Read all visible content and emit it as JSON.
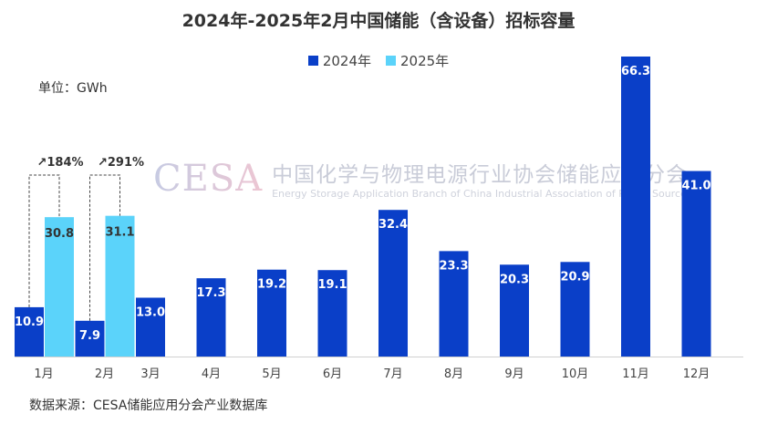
{
  "chart_data": {
    "type": "bar",
    "title": "2024年-2025年2月中国储能（含设备）招标容量",
    "unit_label": "单位：GWh",
    "source": "数据来源：CESA储能应用分会产业数据库",
    "categories": [
      "1月",
      "2月",
      "3月",
      "4月",
      "5月",
      "6月",
      "7月",
      "8月",
      "9月",
      "10月",
      "11月",
      "12月"
    ],
    "series": [
      {
        "name": "2024年",
        "color": "#0a3fc8",
        "values": [
          10.9,
          7.9,
          13.0,
          17.3,
          19.2,
          19.1,
          32.4,
          23.3,
          20.3,
          20.9,
          66.3,
          41.0
        ]
      },
      {
        "name": "2025年",
        "color": "#5bd3fa",
        "values": [
          30.8,
          31.1,
          null,
          null,
          null,
          null,
          null,
          null,
          null,
          null,
          null,
          null
        ]
      }
    ],
    "annotations": [
      {
        "category": "1月",
        "text": "↗184%"
      },
      {
        "category": "2月",
        "text": "↗291%"
      }
    ],
    "ylim": [
      0,
      66.3
    ],
    "grid": false,
    "legend_position": "top",
    "watermark": {
      "logo": "CESA",
      "cn": "中国化学与物理电源行业协会储能应用分会",
      "en": "Energy Storage Application Branch of China Industrial Association of Power Sources"
    }
  }
}
